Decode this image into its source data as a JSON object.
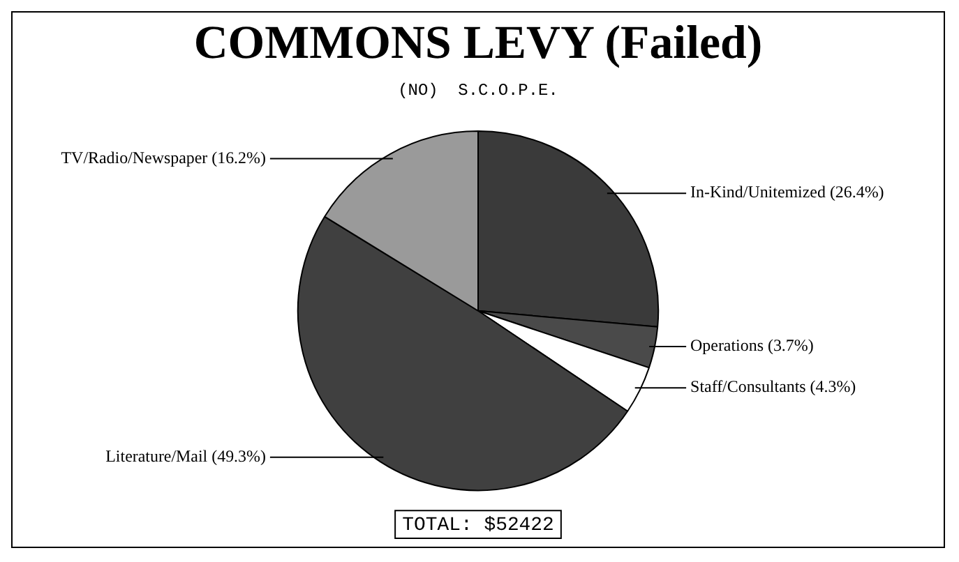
{
  "chart_data": {
    "type": "pie",
    "title": "COMMONS LEVY (Failed)",
    "subtitle": "(NO)  S.C.O.P.E.",
    "categories": [
      "In-Kind/Unitemized",
      "Operations",
      "Staff/Consultants",
      "Literature/Mail",
      "TV/Radio/Newspaper"
    ],
    "values": [
      26.4,
      3.7,
      4.3,
      49.3,
      16.2
    ],
    "value_labels": [
      "(26.4%)",
      "(3.7%)",
      "(4.3%)",
      "(49.3%)",
      "(16.2%)"
    ],
    "colors": [
      "#3a3a3a",
      "#4a4a4a",
      "#ffffff",
      "#404040",
      "#9a9a9a"
    ],
    "annotations": [
      "TOTAL: $52422"
    ],
    "legend": false
  }
}
